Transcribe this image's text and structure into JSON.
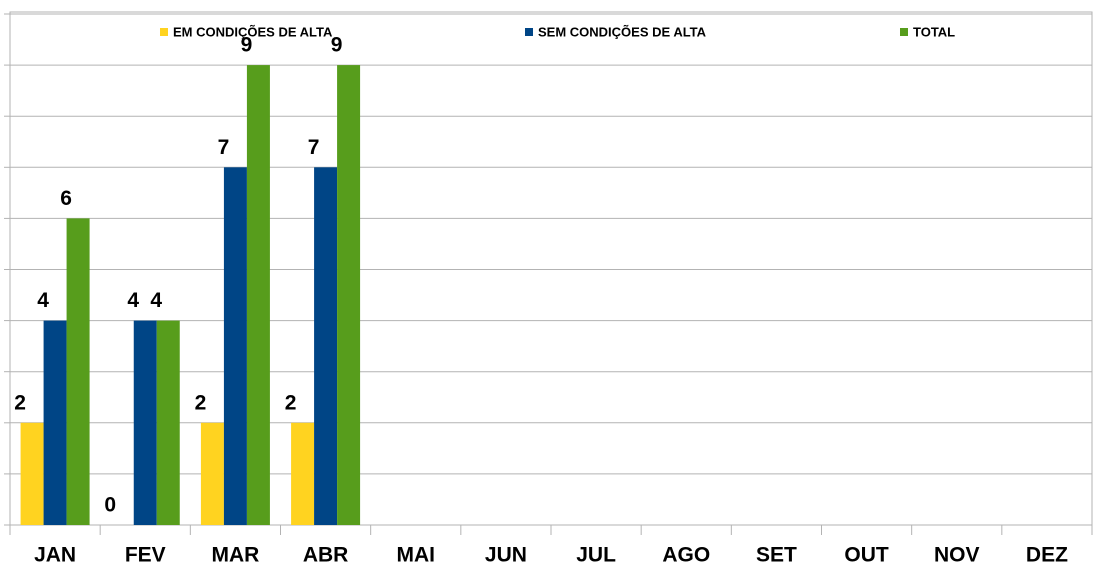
{
  "chart_data": {
    "type": "bar",
    "categories": [
      "JAN",
      "FEV",
      "MAR",
      "ABR",
      "MAI",
      "JUN",
      "JUL",
      "AGO",
      "SET",
      "OUT",
      "NOV",
      "DEZ"
    ],
    "series": [
      {
        "name": "EM CONDIÇÕES DE ALTA",
        "color": "#ffd320",
        "values": [
          2,
          0,
          2,
          2,
          null,
          null,
          null,
          null,
          null,
          null,
          null,
          null
        ]
      },
      {
        "name": "SEM CONDIÇÕES DE ALTA",
        "color": "#004586",
        "values": [
          4,
          4,
          7,
          7,
          null,
          null,
          null,
          null,
          null,
          null,
          null,
          null
        ]
      },
      {
        "name": "TOTAL",
        "color": "#579d1c",
        "values": [
          6,
          4,
          9,
          9,
          null,
          null,
          null,
          null,
          null,
          null,
          null,
          null
        ]
      }
    ],
    "ylim": [
      0,
      10
    ],
    "yticks": [
      0,
      1,
      2,
      3,
      4,
      5,
      6,
      7,
      8,
      9,
      10
    ],
    "grid": true,
    "legend": "top"
  }
}
